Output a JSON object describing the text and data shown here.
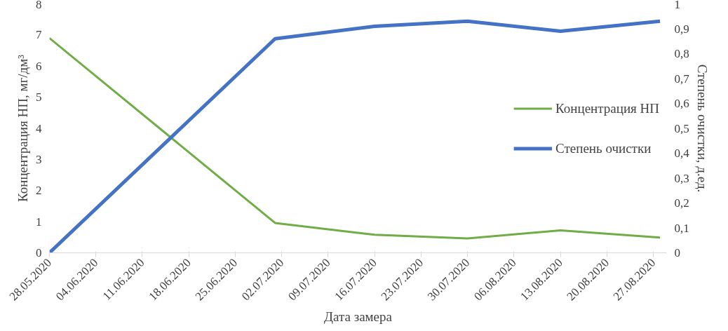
{
  "chart_data": {
    "type": "line",
    "xlabel": "Дата замера",
    "ylabel": "Концентрация НП, мг/дм³",
    "y2label": "Степень очистки, д.ед.",
    "x": [
      "2020-05-28",
      "2020-07-01",
      "2020-07-16",
      "2020-07-30",
      "2020-08-13",
      "2020-08-28"
    ],
    "series": [
      {
        "name": "Концентрация НП",
        "color": "#70ad47",
        "values": [
          6.9,
          0.96,
          0.58,
          0.46,
          0.72,
          0.49
        ]
      },
      {
        "name": "Степень очистки",
        "color": "#4472c4",
        "axis": "y2",
        "values": [
          0,
          0.86,
          0.91,
          0.93,
          0.89,
          0.93
        ]
      }
    ],
    "xlim": [
      "2020-05-28",
      "2020-08-29"
    ],
    "xticks": [
      {
        "value": "2020-05-28",
        "label": "28.05.2020"
      },
      {
        "value": "2020-06-04",
        "label": "04.06.2020"
      },
      {
        "value": "2020-06-11",
        "label": "11.06.2020"
      },
      {
        "value": "2020-06-18",
        "label": "18.06.2020"
      },
      {
        "value": "2020-06-25",
        "label": "25.06.2020"
      },
      {
        "value": "2020-07-02",
        "label": "02.07.2020"
      },
      {
        "value": "2020-07-09",
        "label": "09.07.2020"
      },
      {
        "value": "2020-07-16",
        "label": "16.07.2020"
      },
      {
        "value": "2020-07-23",
        "label": "23.07.2020"
      },
      {
        "value": "2020-07-30",
        "label": "30.07.2020"
      },
      {
        "value": "2020-08-06",
        "label": "06.08.2020"
      },
      {
        "value": "2020-08-13",
        "label": "13.08.2020"
      },
      {
        "value": "2020-08-20",
        "label": "20.08.2020"
      },
      {
        "value": "2020-08-27",
        "label": "27.08.2020"
      }
    ],
    "ylim": [
      0,
      8
    ],
    "yticks": [
      0,
      1,
      2,
      3,
      4,
      5,
      6,
      7,
      8
    ],
    "y2lim": [
      0,
      1
    ],
    "y2ticks": [
      0,
      {
        "value": 0.1,
        "label": "0,1"
      },
      {
        "value": 0.2,
        "label": "0,2"
      },
      {
        "value": 0.3,
        "label": "0,3"
      },
      {
        "value": 0.4,
        "label": "0,4"
      },
      {
        "value": 0.5,
        "label": "0,5"
      },
      {
        "value": 0.6,
        "label": "0,6"
      },
      {
        "value": 0.7,
        "label": "0,7"
      },
      {
        "value": 0.8,
        "label": "0,8"
      },
      {
        "value": 0.9,
        "label": "0,9"
      },
      1
    ],
    "grid": false,
    "legend": "right",
    "marker": "none",
    "line_style": "solid"
  }
}
